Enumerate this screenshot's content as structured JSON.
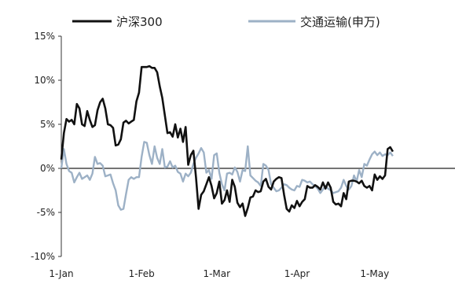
{
  "chart_data": {
    "type": "line",
    "title": "",
    "xlabel": "",
    "ylabel": "",
    "x_range": [
      "2024-01-01",
      "2024-06-01"
    ],
    "ylim": [
      -10,
      15
    ],
    "y_ticks": [
      15,
      10,
      5,
      0,
      -5,
      -10
    ],
    "y_tick_labels": [
      "15%",
      "10%",
      "5%",
      "0%",
      "-5%",
      "-10%"
    ],
    "x_ticks": [
      "2024-01-01",
      "2024-02-01",
      "2024-03-01",
      "2024-04-01",
      "2024-05-01"
    ],
    "x_tick_labels": [
      "1-Jan",
      "1-Feb",
      "1-Mar",
      "1-Apr",
      "1-May"
    ],
    "grid": false,
    "legend_position": "top",
    "series": [
      {
        "name": "沪深300",
        "color": "#111111",
        "points": [
          [
            "2024-01-01",
            1.0
          ],
          [
            "2024-01-02",
            4.0
          ],
          [
            "2024-01-03",
            5.6
          ],
          [
            "2024-01-04",
            5.3
          ],
          [
            "2024-01-05",
            5.5
          ],
          [
            "2024-01-06",
            5.0
          ],
          [
            "2024-01-07",
            7.3
          ],
          [
            "2024-01-08",
            6.8
          ],
          [
            "2024-01-09",
            5.0
          ],
          [
            "2024-01-10",
            4.8
          ],
          [
            "2024-01-11",
            6.5
          ],
          [
            "2024-01-12",
            5.5
          ],
          [
            "2024-01-13",
            4.7
          ],
          [
            "2024-01-14",
            4.9
          ],
          [
            "2024-01-15",
            6.6
          ],
          [
            "2024-01-16",
            7.5
          ],
          [
            "2024-01-17",
            7.9
          ],
          [
            "2024-01-18",
            6.8
          ],
          [
            "2024-01-19",
            5.0
          ],
          [
            "2024-01-20",
            4.9
          ],
          [
            "2024-01-21",
            4.6
          ],
          [
            "2024-01-22",
            2.6
          ],
          [
            "2024-01-23",
            2.7
          ],
          [
            "2024-01-24",
            3.3
          ],
          [
            "2024-01-25",
            5.2
          ],
          [
            "2024-01-26",
            5.4
          ],
          [
            "2024-01-27",
            5.1
          ],
          [
            "2024-01-28",
            5.3
          ],
          [
            "2024-01-29",
            5.5
          ],
          [
            "2024-01-30",
            7.6
          ],
          [
            "2024-01-31",
            8.6
          ],
          [
            "2024-02-01",
            11.5
          ],
          [
            "2024-02-02",
            11.5
          ],
          [
            "2024-02-03",
            11.5
          ],
          [
            "2024-02-04",
            11.6
          ],
          [
            "2024-02-05",
            11.4
          ],
          [
            "2024-02-06",
            11.4
          ],
          [
            "2024-02-07",
            10.9
          ],
          [
            "2024-02-08",
            9.3
          ],
          [
            "2024-02-09",
            8.0
          ],
          [
            "2024-02-10",
            6.0
          ],
          [
            "2024-02-11",
            4.0
          ],
          [
            "2024-02-12",
            4.1
          ],
          [
            "2024-02-13",
            3.6
          ],
          [
            "2024-02-14",
            5.0
          ],
          [
            "2024-02-15",
            3.5
          ],
          [
            "2024-02-16",
            4.5
          ],
          [
            "2024-02-17",
            3.0
          ],
          [
            "2024-02-18",
            4.7
          ],
          [
            "2024-02-19",
            0.4
          ],
          [
            "2024-02-20",
            1.5
          ],
          [
            "2024-02-21",
            2.0
          ],
          [
            "2024-02-22",
            -1.0
          ],
          [
            "2024-02-23",
            -4.6
          ],
          [
            "2024-02-24",
            -3.0
          ],
          [
            "2024-02-25",
            -2.6
          ],
          [
            "2024-02-26",
            -1.8
          ],
          [
            "2024-02-27",
            -1.0
          ],
          [
            "2024-02-28",
            -2.0
          ],
          [
            "2024-02-29",
            -3.4
          ],
          [
            "2024-03-01",
            -2.8
          ],
          [
            "2024-03-02",
            -1.5
          ],
          [
            "2024-03-03",
            -4.0
          ],
          [
            "2024-03-04",
            -3.6
          ],
          [
            "2024-03-05",
            -2.5
          ],
          [
            "2024-03-06",
            -3.8
          ],
          [
            "2024-03-07",
            -1.3
          ],
          [
            "2024-03-08",
            -2.1
          ],
          [
            "2024-03-09",
            -3.9
          ],
          [
            "2024-03-10",
            -4.4
          ],
          [
            "2024-03-11",
            -4.0
          ],
          [
            "2024-03-12",
            -5.4
          ],
          [
            "2024-03-13",
            -4.5
          ],
          [
            "2024-03-14",
            -3.3
          ],
          [
            "2024-03-15",
            -3.2
          ],
          [
            "2024-03-16",
            -2.5
          ],
          [
            "2024-03-17",
            -2.7
          ],
          [
            "2024-03-18",
            -2.6
          ],
          [
            "2024-03-19",
            -1.5
          ],
          [
            "2024-03-20",
            -1.2
          ],
          [
            "2024-03-21",
            -2.1
          ],
          [
            "2024-03-22",
            -2.4
          ],
          [
            "2024-03-23",
            -1.5
          ],
          [
            "2024-03-24",
            -1.2
          ],
          [
            "2024-03-25",
            -1.0
          ],
          [
            "2024-03-26",
            -1.1
          ],
          [
            "2024-03-27",
            -3.0
          ],
          [
            "2024-03-28",
            -4.6
          ],
          [
            "2024-03-29",
            -4.9
          ],
          [
            "2024-03-30",
            -4.2
          ],
          [
            "2024-03-31",
            -4.5
          ],
          [
            "2024-04-01",
            -3.7
          ],
          [
            "2024-04-02",
            -4.3
          ],
          [
            "2024-04-03",
            -3.8
          ],
          [
            "2024-04-04",
            -3.5
          ],
          [
            "2024-04-05",
            -2.0
          ],
          [
            "2024-04-06",
            -2.2
          ],
          [
            "2024-04-07",
            -2.2
          ],
          [
            "2024-04-08",
            -1.9
          ],
          [
            "2024-04-09",
            -2.1
          ],
          [
            "2024-04-10",
            -2.4
          ],
          [
            "2024-04-11",
            -1.6
          ],
          [
            "2024-04-12",
            -2.3
          ],
          [
            "2024-04-13",
            -1.6
          ],
          [
            "2024-04-14",
            -2.2
          ],
          [
            "2024-04-15",
            -3.8
          ],
          [
            "2024-04-16",
            -4.1
          ],
          [
            "2024-04-17",
            -4.0
          ],
          [
            "2024-04-18",
            -4.3
          ],
          [
            "2024-04-19",
            -2.8
          ],
          [
            "2024-04-20",
            -3.5
          ],
          [
            "2024-04-21",
            -1.5
          ],
          [
            "2024-04-22",
            -1.4
          ],
          [
            "2024-04-23",
            -1.4
          ],
          [
            "2024-04-24",
            -1.5
          ],
          [
            "2024-04-25",
            -1.7
          ],
          [
            "2024-04-26",
            -1.4
          ],
          [
            "2024-04-27",
            -2.0
          ],
          [
            "2024-04-28",
            -2.2
          ],
          [
            "2024-04-29",
            -2.0
          ],
          [
            "2024-04-30",
            -2.5
          ],
          [
            "2024-05-01",
            -0.7
          ],
          [
            "2024-05-02",
            -1.3
          ],
          [
            "2024-05-03",
            -0.9
          ],
          [
            "2024-05-04",
            -1.2
          ],
          [
            "2024-05-05",
            -0.8
          ],
          [
            "2024-05-06",
            2.2
          ],
          [
            "2024-05-07",
            2.4
          ],
          [
            "2024-05-08",
            1.9
          ]
        ]
      },
      {
        "name": "交通运输(申万)",
        "color": "#9db1c6",
        "points": [
          [
            "2024-01-01",
            0.0
          ],
          [
            "2024-01-02",
            2.2
          ],
          [
            "2024-01-03",
            0.5
          ],
          [
            "2024-01-04",
            -0.3
          ],
          [
            "2024-01-05",
            -0.5
          ],
          [
            "2024-01-06",
            -1.6
          ],
          [
            "2024-01-07",
            -1.0
          ],
          [
            "2024-01-08",
            -0.5
          ],
          [
            "2024-01-09",
            -1.2
          ],
          [
            "2024-01-10",
            -1.0
          ],
          [
            "2024-01-11",
            -0.8
          ],
          [
            "2024-01-12",
            -1.3
          ],
          [
            "2024-01-13",
            -0.6
          ],
          [
            "2024-01-14",
            1.3
          ],
          [
            "2024-01-15",
            0.5
          ],
          [
            "2024-01-16",
            0.6
          ],
          [
            "2024-01-17",
            0.3
          ],
          [
            "2024-01-18",
            -0.9
          ],
          [
            "2024-01-19",
            -0.8
          ],
          [
            "2024-01-20",
            -0.7
          ],
          [
            "2024-01-21",
            -1.7
          ],
          [
            "2024-01-22",
            -2.5
          ],
          [
            "2024-01-23",
            -4.2
          ],
          [
            "2024-01-24",
            -4.7
          ],
          [
            "2024-01-25",
            -4.6
          ],
          [
            "2024-01-26",
            -2.9
          ],
          [
            "2024-01-27",
            -1.3
          ],
          [
            "2024-01-28",
            -1.0
          ],
          [
            "2024-01-29",
            -1.2
          ],
          [
            "2024-01-30",
            -1.0
          ],
          [
            "2024-01-31",
            -1.0
          ],
          [
            "2024-02-01",
            1.3
          ],
          [
            "2024-02-02",
            3.0
          ],
          [
            "2024-02-03",
            2.9
          ],
          [
            "2024-02-04",
            1.5
          ],
          [
            "2024-02-05",
            0.5
          ],
          [
            "2024-02-06",
            2.5
          ],
          [
            "2024-02-07",
            1.2
          ],
          [
            "2024-02-08",
            0.5
          ],
          [
            "2024-02-09",
            2.2
          ],
          [
            "2024-02-10",
            0.1
          ],
          [
            "2024-02-11",
            0.2
          ],
          [
            "2024-02-12",
            0.8
          ],
          [
            "2024-02-13",
            0.1
          ],
          [
            "2024-02-14",
            0.3
          ],
          [
            "2024-02-15",
            -0.4
          ],
          [
            "2024-02-16",
            -0.6
          ],
          [
            "2024-02-17",
            -1.5
          ],
          [
            "2024-02-18",
            -0.6
          ],
          [
            "2024-02-19",
            -0.9
          ],
          [
            "2024-02-20",
            -0.5
          ],
          [
            "2024-02-21",
            0.5
          ],
          [
            "2024-02-22",
            1.2
          ],
          [
            "2024-02-23",
            1.7
          ],
          [
            "2024-02-24",
            2.3
          ],
          [
            "2024-02-25",
            1.8
          ],
          [
            "2024-02-26",
            -0.5
          ],
          [
            "2024-02-27",
            -0.2
          ],
          [
            "2024-02-28",
            -1.2
          ],
          [
            "2024-02-29",
            1.5
          ],
          [
            "2024-03-01",
            1.7
          ],
          [
            "2024-03-02",
            -0.5
          ],
          [
            "2024-03-03",
            -1.8
          ],
          [
            "2024-03-04",
            -2.5
          ],
          [
            "2024-03-05",
            -0.6
          ],
          [
            "2024-03-06",
            -0.5
          ],
          [
            "2024-03-07",
            -0.7
          ],
          [
            "2024-03-08",
            0.1
          ],
          [
            "2024-03-09",
            -0.4
          ],
          [
            "2024-03-10",
            -1.5
          ],
          [
            "2024-03-11",
            -0.2
          ],
          [
            "2024-03-12",
            -0.3
          ],
          [
            "2024-03-13",
            2.5
          ],
          [
            "2024-03-14",
            -0.8
          ],
          [
            "2024-03-15",
            -1.1
          ],
          [
            "2024-03-16",
            -1.4
          ],
          [
            "2024-03-17",
            -1.6
          ],
          [
            "2024-03-18",
            -2.0
          ],
          [
            "2024-03-19",
            0.5
          ],
          [
            "2024-03-20",
            0.3
          ],
          [
            "2024-03-21",
            -0.2
          ],
          [
            "2024-03-22",
            -1.8
          ],
          [
            "2024-03-23",
            -2.2
          ],
          [
            "2024-03-24",
            -2.6
          ],
          [
            "2024-03-25",
            -2.5
          ],
          [
            "2024-03-26",
            -2.2
          ],
          [
            "2024-03-27",
            -1.8
          ],
          [
            "2024-03-28",
            -1.9
          ],
          [
            "2024-03-29",
            -2.2
          ],
          [
            "2024-03-30",
            -2.4
          ],
          [
            "2024-03-31",
            -2.5
          ],
          [
            "2024-04-01",
            -2.0
          ],
          [
            "2024-04-02",
            -2.1
          ],
          [
            "2024-04-03",
            -1.3
          ],
          [
            "2024-04-04",
            -1.4
          ],
          [
            "2024-04-05",
            -1.6
          ],
          [
            "2024-04-06",
            -1.5
          ],
          [
            "2024-04-07",
            -1.8
          ],
          [
            "2024-04-08",
            -2.0
          ],
          [
            "2024-04-09",
            -2.3
          ],
          [
            "2024-04-10",
            -2.8
          ],
          [
            "2024-04-11",
            -2.4
          ],
          [
            "2024-04-12",
            -2.0
          ],
          [
            "2024-04-13",
            -2.3
          ],
          [
            "2024-04-14",
            -2.5
          ],
          [
            "2024-04-15",
            -2.8
          ],
          [
            "2024-04-16",
            -2.7
          ],
          [
            "2024-04-17",
            -2.6
          ],
          [
            "2024-04-18",
            -2.2
          ],
          [
            "2024-04-19",
            -1.3
          ],
          [
            "2024-04-20",
            -2.0
          ],
          [
            "2024-04-21",
            -2.4
          ],
          [
            "2024-04-22",
            -2.0
          ],
          [
            "2024-04-23",
            -0.8
          ],
          [
            "2024-04-24",
            -1.5
          ],
          [
            "2024-04-25",
            -0.2
          ],
          [
            "2024-04-26",
            -1.0
          ],
          [
            "2024-04-27",
            0.5
          ],
          [
            "2024-04-28",
            0.3
          ],
          [
            "2024-04-29",
            1.0
          ],
          [
            "2024-04-30",
            1.6
          ],
          [
            "2024-05-01",
            1.9
          ],
          [
            "2024-05-02",
            1.5
          ],
          [
            "2024-05-03",
            1.8
          ],
          [
            "2024-05-04",
            1.4
          ],
          [
            "2024-05-05",
            1.6
          ],
          [
            "2024-05-06",
            1.5
          ],
          [
            "2024-05-07",
            1.8
          ],
          [
            "2024-05-08",
            1.4
          ]
        ]
      }
    ]
  }
}
